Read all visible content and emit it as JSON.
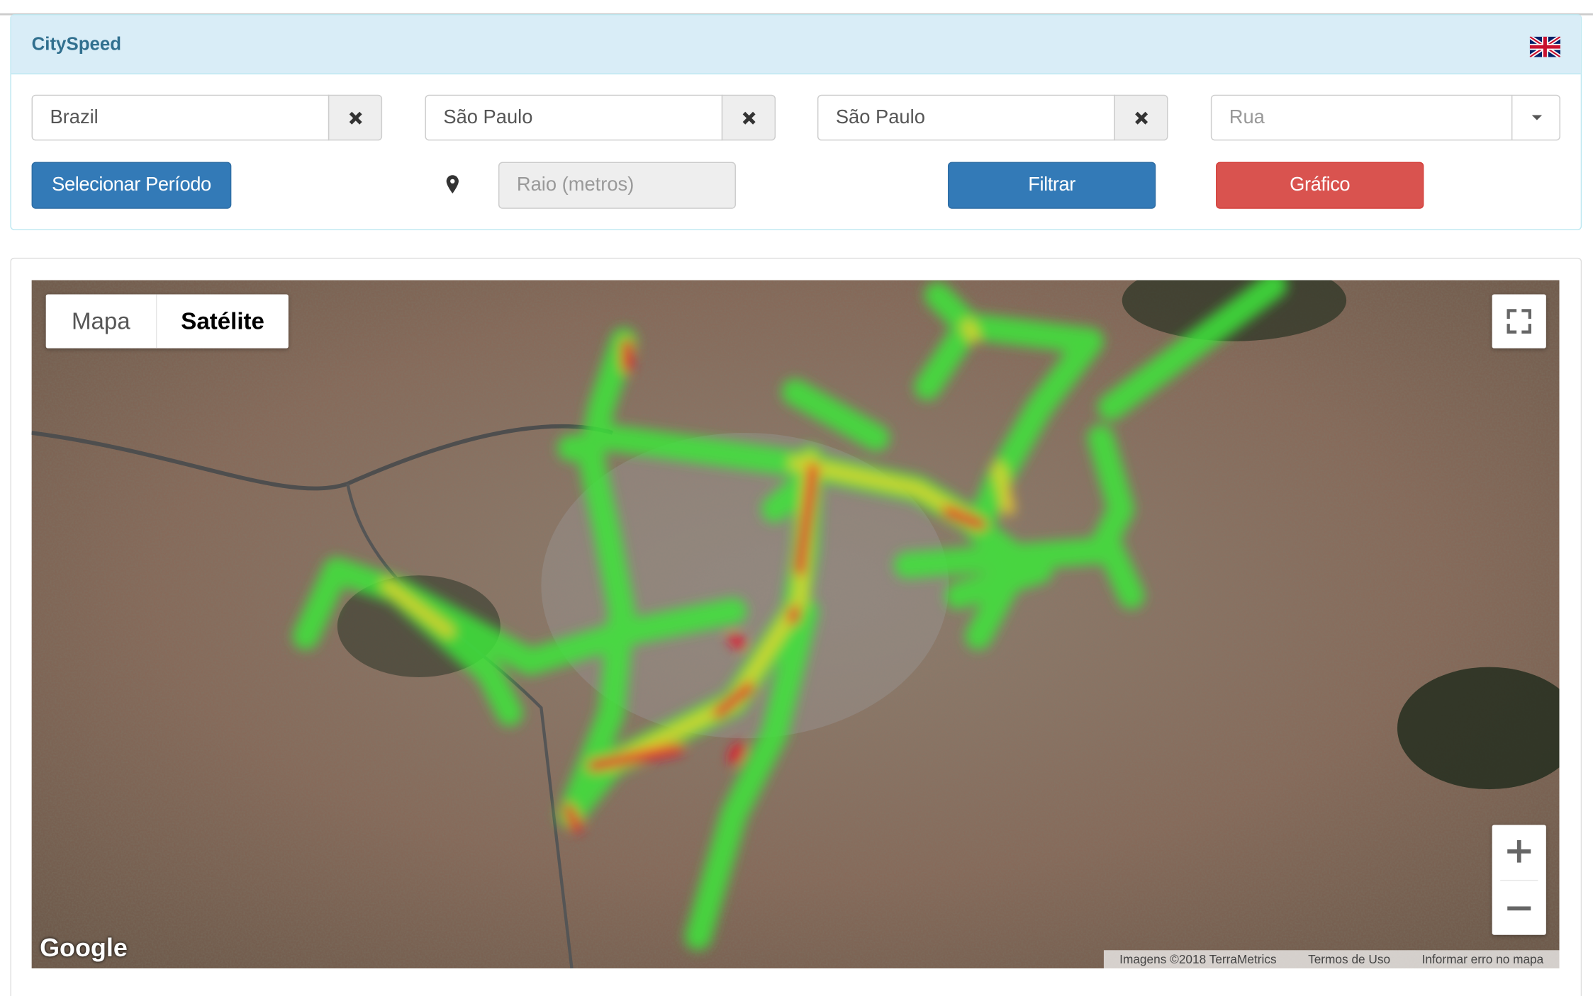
{
  "header": {
    "title": "CitySpeed"
  },
  "filters": {
    "country": "Brazil",
    "state": "São Paulo",
    "city": "São Paulo",
    "street_placeholder": "Rua",
    "radius_placeholder": "Raio (metros)"
  },
  "buttons": {
    "period": "Selecionar Período",
    "filter": "Filtrar",
    "chart": "Gráfico"
  },
  "map": {
    "map_type_map": "Mapa",
    "map_type_satellite": "Satélite",
    "logo": "Google",
    "attribution": [
      "Imagens ©2018 TerraMetrics",
      "Termos de Uso",
      "Informar erro no mapa"
    ]
  }
}
